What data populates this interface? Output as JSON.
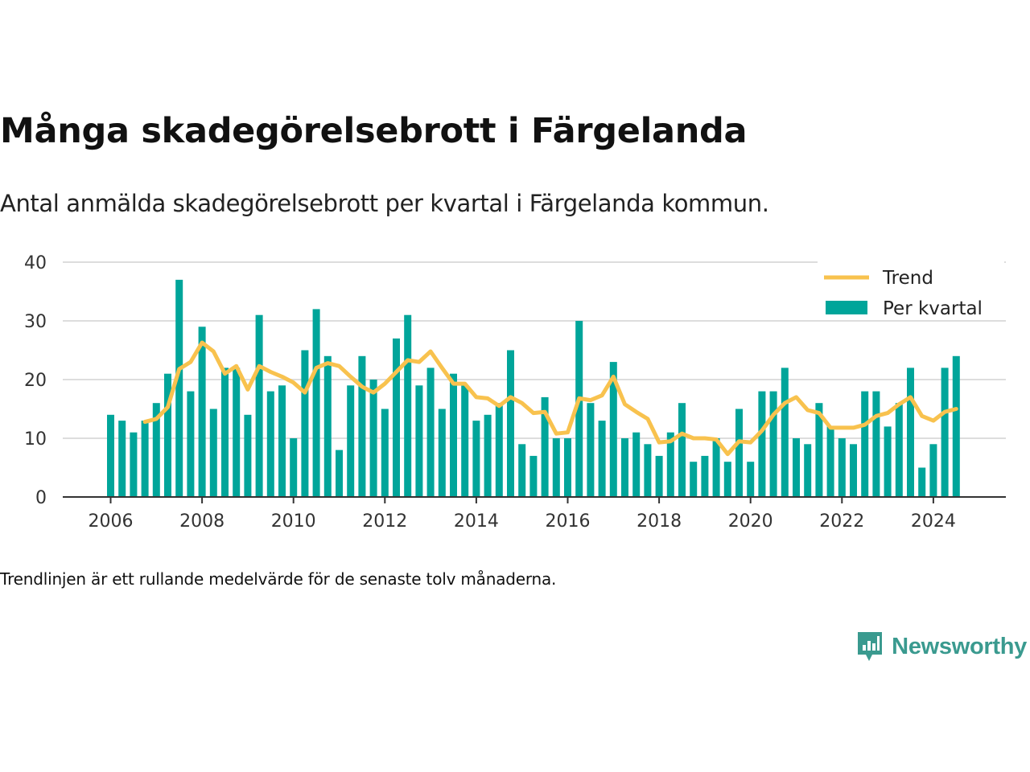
{
  "title": "Många skadegörelsebrott i Färgelanda",
  "subtitle": "Antal anmälda skadegörelsebrott per kvartal i Färgelanda kommun.",
  "footnote": "Trendlinjen är ett rullande medelvärde för de senaste tolv månaderna.",
  "brand": {
    "name": "Newsworthy",
    "logo_icon": "newsworthy-logo-icon"
  },
  "colors": {
    "bar": "#00a59a",
    "trend": "#f8c24e",
    "grid": "#dddddd",
    "axis": "#333333",
    "brand": "#3a9a8f"
  },
  "chart_data": {
    "type": "bar",
    "x_start": "2006-Q1",
    "xticks": [
      "2006",
      "2008",
      "2010",
      "2012",
      "2014",
      "2016",
      "2018",
      "2020",
      "2022",
      "2024"
    ],
    "yticks": [
      0,
      10,
      20,
      30,
      40
    ],
    "ylim": [
      0,
      40
    ],
    "xlabel": "",
    "ylabel": "",
    "grid": true,
    "legend": {
      "position": "top-right",
      "entries": [
        "Trend",
        "Per kvartal"
      ]
    },
    "series": [
      {
        "name": "Per kvartal",
        "type": "bar",
        "values": [
          14,
          13,
          11,
          13,
          16,
          21,
          37,
          18,
          29,
          15,
          22,
          22,
          14,
          31,
          18,
          19,
          10,
          25,
          32,
          24,
          8,
          19,
          24,
          20,
          15,
          27,
          31,
          19,
          22,
          15,
          21,
          19,
          13,
          14,
          16,
          25,
          9,
          7,
          17,
          10,
          10,
          30,
          16,
          13,
          23,
          10,
          11,
          9,
          7,
          11,
          16,
          6,
          7,
          10,
          6,
          15,
          6,
          18,
          18,
          22,
          10,
          9,
          16,
          12,
          10,
          9,
          18,
          18,
          12,
          16,
          22,
          5,
          9,
          22,
          24
        ]
      },
      {
        "name": "Trend",
        "type": "line",
        "start_index": 3,
        "values": [
          12.8,
          13.3,
          15.3,
          21.8,
          23.0,
          26.3,
          24.8,
          21.0,
          22.3,
          18.3,
          22.3,
          21.3,
          20.5,
          19.5,
          17.8,
          22.0,
          22.8,
          22.3,
          20.5,
          18.8,
          17.8,
          19.3,
          21.3,
          23.3,
          23.0,
          24.8,
          22.0,
          19.3,
          19.3,
          17.0,
          16.8,
          15.5,
          17.0,
          16.0,
          14.3,
          14.5,
          10.8,
          11.0,
          16.8,
          16.5,
          17.3,
          20.5,
          15.8,
          14.5,
          13.3,
          9.3,
          9.5,
          10.8,
          10.0,
          10.0,
          9.8,
          7.3,
          9.5,
          9.3,
          11.3,
          14.0,
          16.0,
          17.0,
          14.8,
          14.3,
          11.8,
          11.8,
          11.8,
          12.3,
          13.8,
          14.3,
          15.8,
          17.0,
          13.8,
          13.0,
          14.5,
          15.0
        ]
      }
    ]
  }
}
